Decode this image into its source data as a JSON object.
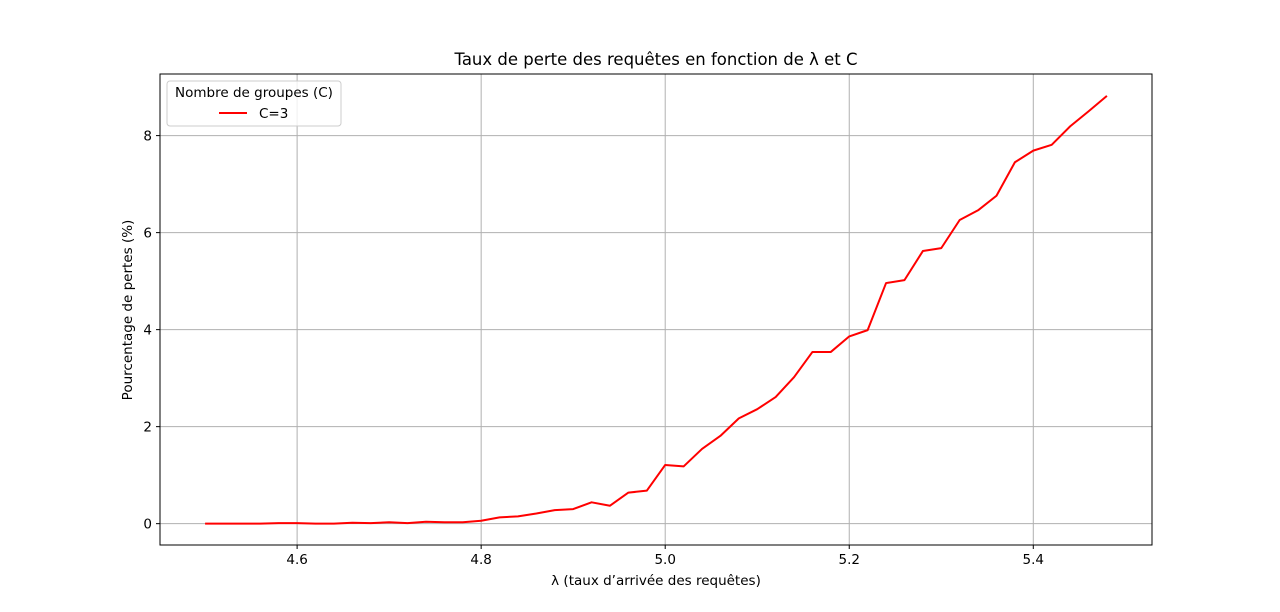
{
  "chart_data": {
    "type": "line",
    "title": "Taux de perte des requêtes en fonction de λ et C",
    "xlabel": "λ (taux d’arrivée des requêtes)",
    "ylabel": "Pourcentage de pertes (%)",
    "xlim": [
      4.451,
      5.529
    ],
    "ylim": [
      -0.44,
      9.27
    ],
    "x_ticks": [
      4.6,
      4.8,
      5.0,
      5.2,
      5.4
    ],
    "x_tick_labels": [
      "4.6",
      "4.8",
      "5.0",
      "5.2",
      "5.4"
    ],
    "y_ticks": [
      0,
      2,
      4,
      6,
      8
    ],
    "y_tick_labels": [
      "0",
      "2",
      "4",
      "6",
      "8"
    ],
    "grid": true,
    "legend": {
      "title": "Nombre de groupes (C)",
      "placement": "top-left"
    },
    "series": [
      {
        "name": "C=3",
        "color": "#ff0000",
        "x": [
          4.5,
          4.52,
          4.54,
          4.56,
          4.58,
          4.6,
          4.62,
          4.64,
          4.66,
          4.68,
          4.7,
          4.72,
          4.74,
          4.76,
          4.78,
          4.8,
          4.82,
          4.84,
          4.86,
          4.88,
          4.9,
          4.92,
          4.94,
          4.96,
          4.98,
          5.0,
          5.02,
          5.04,
          5.06,
          5.08,
          5.1,
          5.12,
          5.14,
          5.16,
          5.18,
          5.2,
          5.22,
          5.24,
          5.26,
          5.28,
          5.3,
          5.32,
          5.34,
          5.36,
          5.38,
          5.4,
          5.42,
          5.44,
          5.46,
          5.48
        ],
        "y": [
          0.0,
          0.0,
          0.0,
          0.0,
          0.01,
          0.01,
          0.0,
          0.0,
          0.02,
          0.01,
          0.03,
          0.01,
          0.04,
          0.03,
          0.03,
          0.06,
          0.13,
          0.15,
          0.21,
          0.28,
          0.3,
          0.44,
          0.37,
          0.64,
          0.68,
          1.21,
          1.18,
          1.54,
          1.81,
          2.17,
          2.36,
          2.61,
          3.02,
          3.54,
          3.54,
          3.86,
          3.99,
          4.96,
          5.02,
          5.62,
          5.68,
          6.26,
          6.46,
          6.76,
          7.45,
          7.69,
          7.81,
          8.19,
          8.5,
          8.82
        ]
      }
    ]
  }
}
